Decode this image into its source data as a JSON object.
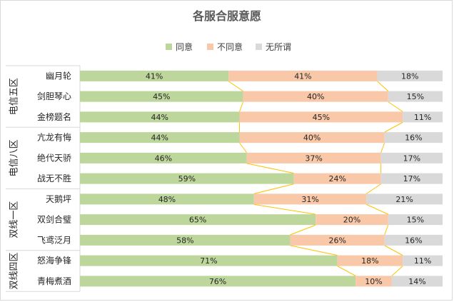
{
  "chart_data": {
    "type": "bar",
    "stacked": true,
    "orientation": "horizontal",
    "title": "各服合服意愿",
    "legend": {
      "position": "top"
    },
    "series": [
      {
        "name": "同意",
        "color": "#bdd69b",
        "values": [
          41,
          45,
          44,
          44,
          46,
          59,
          48,
          65,
          58,
          71,
          76
        ]
      },
      {
        "name": "不同意",
        "color": "#f8c8a8",
        "values": [
          41,
          40,
          45,
          40,
          37,
          24,
          31,
          20,
          26,
          18,
          10
        ]
      },
      {
        "name": "无所谓",
        "color": "#d9d9d9",
        "values": [
          18,
          15,
          11,
          16,
          17,
          17,
          21,
          15,
          16,
          11,
          14
        ]
      }
    ],
    "categories": [
      "幽月轮",
      "剑胆琴心",
      "金榜题名",
      "亢龙有悔",
      "绝代天骄",
      "战无不胜",
      "天鹅坪",
      "双剑合璧",
      "飞鸢泛月",
      "怒海争锋",
      "青梅煮酒"
    ],
    "groups": [
      {
        "name": "电信五区",
        "count": 3
      },
      {
        "name": "电信八区",
        "count": 3
      },
      {
        "name": "双线一区",
        "count": 3
      },
      {
        "name": "双线四区",
        "count": 2
      }
    ],
    "value_suffix": "%",
    "xlim": [
      0,
      100
    ],
    "series_lines": {
      "color": "#ffc000"
    },
    "grid": false
  }
}
